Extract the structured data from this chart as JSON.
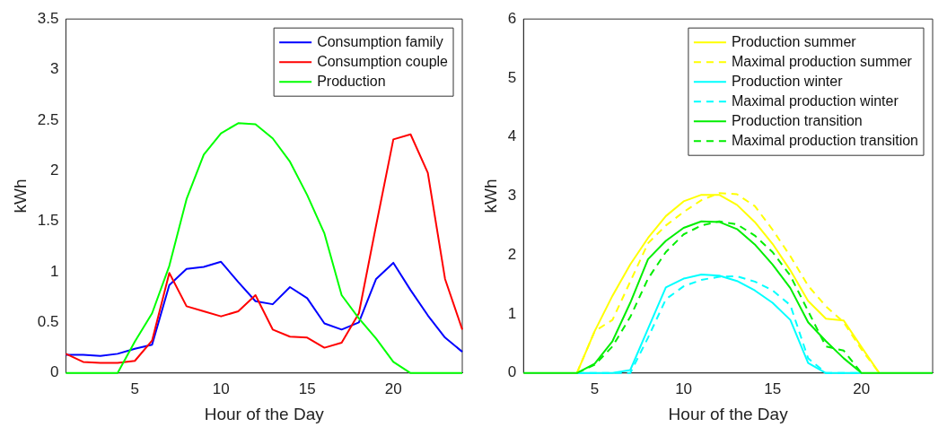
{
  "chart_data": [
    {
      "type": "line",
      "xlabel": "Hour of the Day",
      "ylabel": "kWh",
      "x": [
        1,
        2,
        3,
        4,
        5,
        6,
        7,
        8,
        9,
        10,
        11,
        12,
        13,
        14,
        15,
        16,
        17,
        18,
        19,
        20,
        21,
        22,
        23,
        24
      ],
      "xlim": [
        1,
        24
      ],
      "xticks": [
        5,
        10,
        15,
        20
      ],
      "ylim": [
        0,
        3.5
      ],
      "yticks": [
        0,
        0.5,
        1,
        1.5,
        2,
        2.5,
        3,
        3.5
      ],
      "grid": false,
      "legend": "top right",
      "series": [
        {
          "name": "Consumption family",
          "color": "#0000ff",
          "line_style": "solid",
          "values": [
            0.18,
            0.18,
            0.17,
            0.19,
            0.24,
            0.28,
            0.87,
            1.03,
            1.05,
            1.1,
            0.9,
            0.71,
            0.68,
            0.85,
            0.74,
            0.49,
            0.43,
            0.5,
            0.93,
            1.09,
            0.82,
            0.57,
            0.35,
            0.21
          ]
        },
        {
          "name": "Consumption couple",
          "color": "#ff0000",
          "line_style": "solid",
          "values": [
            0.19,
            0.11,
            0.1,
            0.1,
            0.12,
            0.32,
            0.99,
            0.66,
            0.61,
            0.56,
            0.61,
            0.77,
            0.43,
            0.36,
            0.35,
            0.25,
            0.3,
            0.59,
            1.46,
            2.31,
            2.36,
            1.98,
            0.93,
            0.43
          ]
        },
        {
          "name": "Production",
          "color": "#00ff00",
          "line_style": "solid",
          "values": [
            0,
            0,
            0,
            0,
            0.31,
            0.59,
            1.06,
            1.72,
            2.16,
            2.37,
            2.47,
            2.46,
            2.32,
            2.09,
            1.76,
            1.38,
            0.77,
            0.54,
            0.34,
            0.11,
            0,
            0,
            0,
            0
          ]
        }
      ]
    },
    {
      "type": "line",
      "xlabel": "Hour of the Day",
      "ylabel": "kWh",
      "x": [
        1,
        2,
        3,
        4,
        5,
        6,
        7,
        8,
        9,
        10,
        11,
        12,
        13,
        14,
        15,
        16,
        17,
        18,
        19,
        20,
        21,
        22,
        23,
        24
      ],
      "xlim": [
        1,
        24
      ],
      "xticks": [
        5,
        10,
        15,
        20
      ],
      "ylim": [
        0,
        6
      ],
      "yticks": [
        0,
        1,
        2,
        3,
        4,
        5,
        6
      ],
      "grid": false,
      "legend": "top right",
      "series": [
        {
          "name": "Production summer",
          "color": "#ffff00",
          "line_style": "solid",
          "values": [
            null,
            null,
            null,
            0,
            0.71,
            1.31,
            1.84,
            2.29,
            2.66,
            2.91,
            3.02,
            3.02,
            2.85,
            2.56,
            2.19,
            1.74,
            1.22,
            0.92,
            0.89,
            0.44,
            0,
            null,
            null,
            null
          ]
        },
        {
          "name": "Maximal production summer",
          "color": "#ffff00",
          "line_style": "dashed",
          "values": [
            null,
            null,
            null,
            0,
            0.71,
            0.9,
            1.55,
            2.2,
            2.5,
            2.73,
            2.93,
            3.05,
            3.03,
            2.83,
            2.43,
            1.98,
            1.48,
            1.13,
            0.86,
            0.4,
            0,
            null,
            null,
            null
          ]
        },
        {
          "name": "Production winter",
          "color": "#00ffff",
          "line_style": "solid",
          "values": [
            null,
            null,
            null,
            0,
            0,
            0,
            0.05,
            0.75,
            1.45,
            1.6,
            1.67,
            1.65,
            1.56,
            1.4,
            1.19,
            0.9,
            0.17,
            0,
            0,
            0,
            null,
            null,
            null,
            null
          ]
        },
        {
          "name": "Maximal production winter",
          "color": "#00ffff",
          "line_style": "dashed",
          "values": [
            null,
            null,
            null,
            0,
            0,
            0,
            0,
            0.6,
            1.25,
            1.47,
            1.58,
            1.63,
            1.64,
            1.55,
            1.4,
            1.15,
            0.25,
            0,
            0,
            0,
            null,
            null,
            null,
            null
          ]
        },
        {
          "name": "Production transition",
          "color": "#00ee00",
          "line_style": "solid",
          "values": [
            0,
            0,
            0,
            0,
            0.16,
            0.54,
            1.19,
            1.93,
            2.24,
            2.46,
            2.57,
            2.56,
            2.44,
            2.18,
            1.84,
            1.44,
            0.86,
            0.54,
            0.25,
            0,
            0,
            0,
            0,
            0
          ]
        },
        {
          "name": "Maximal production transition",
          "color": "#00ee00",
          "line_style": "dashed",
          "values": [
            null,
            null,
            null,
            0,
            0.14,
            0.45,
            0.95,
            1.6,
            2.05,
            2.35,
            2.5,
            2.57,
            2.52,
            2.33,
            2.05,
            1.65,
            1.05,
            0.45,
            0.38,
            0,
            null,
            null,
            null,
            null
          ]
        }
      ]
    }
  ]
}
